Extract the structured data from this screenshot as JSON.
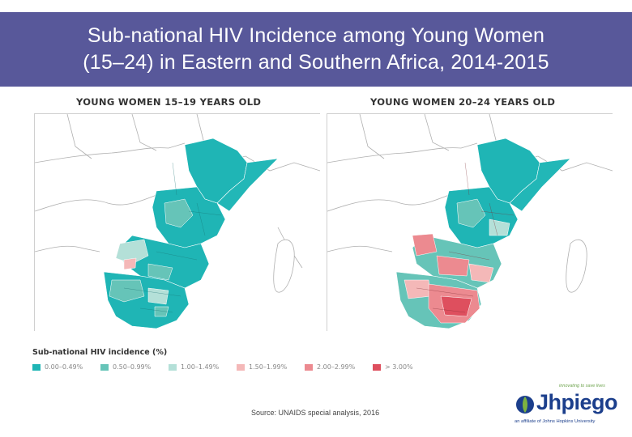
{
  "title": {
    "line1": "Sub-national HIV Incidence among Young Women",
    "line2": "(15–24) in Eastern and Southern Africa, 2014-2015"
  },
  "maps": [
    {
      "label": "YOUNG WOMEN 15–19 YEARS OLD"
    },
    {
      "label": "YOUNG WOMEN 20–24 YEARS OLD"
    }
  ],
  "legend": {
    "title": "Sub-national HIV incidence (%)",
    "items": [
      {
        "label": "0.00–0.49%",
        "color": "#1fb5b5"
      },
      {
        "label": "0.50–0.99%",
        "color": "#66c4b8"
      },
      {
        "label": "1.00–1.49%",
        "color": "#b4e0d8"
      },
      {
        "label": "1.50–1.99%",
        "color": "#f4b8b8"
      },
      {
        "label": "2.00–2.99%",
        "color": "#ec8a90"
      },
      {
        "label": "> 3.00%",
        "color": "#de4f5e"
      }
    ]
  },
  "source": "Source: UNAIDS special analysis, 2016",
  "logo": {
    "tagline": "innovating to save lives",
    "wordmark": "Jhpiego",
    "affiliate": "an affiliate of Johns Hopkins University"
  }
}
